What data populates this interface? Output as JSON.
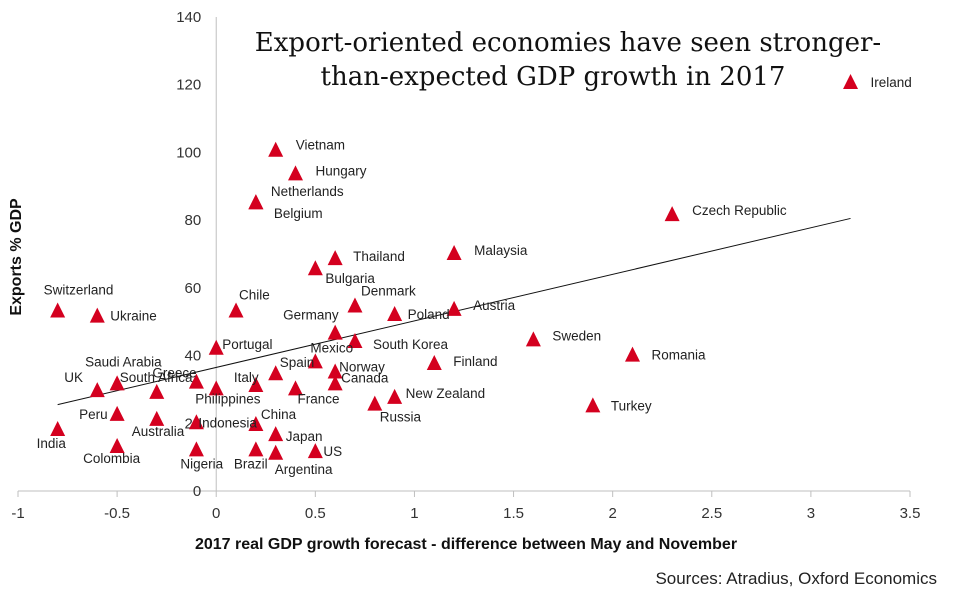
{
  "chart_data": {
    "type": "scatter",
    "title_lines": [
      "Export-oriented economies have seen stronger-",
      "than-expected GDP growth in 2017"
    ],
    "xlabel": "2017 real GDP  growth forecast - difference between May and November",
    "ylabel": "Exports % GDP",
    "source": "Sources:  Atradius,  Oxford Economics",
    "xlim": [
      -1,
      3.5
    ],
    "ylim": [
      0,
      140
    ],
    "x_ticks": [
      -1,
      -0.5,
      0,
      0.5,
      1,
      1.5,
      2,
      2.5,
      3,
      3.5
    ],
    "x_tick_labels": [
      "-1",
      "-0.5",
      "0",
      "0.5",
      "1",
      "1.5",
      "2",
      "2.5",
      "3",
      "3.5"
    ],
    "y_ticks": [
      0,
      20,
      40,
      60,
      80,
      100,
      120,
      140
    ],
    "y_tick_labels": [
      "0",
      "20",
      "40",
      "60",
      "80",
      "100",
      "120",
      "140"
    ],
    "marker_color": "#D4001F",
    "trendline": {
      "x": [
        -0.8,
        3.2
      ],
      "y": [
        25.5,
        80.5
      ]
    },
    "points": [
      {
        "label": "Ireland",
        "x": 3.2,
        "y": 120.5
      },
      {
        "label": "Vietnam",
        "x": 0.3,
        "y": 100.5
      },
      {
        "label": "Hungary",
        "x": 0.4,
        "y": 93.5
      },
      {
        "label": "Netherlands",
        "x": 0.2,
        "y": 85
      },
      {
        "label": "Belgium",
        "x": 0.2,
        "y": 85
      },
      {
        "label": "Czech Republic",
        "x": 2.3,
        "y": 81.5
      },
      {
        "label": "Thailand",
        "x": 0.6,
        "y": 68.5
      },
      {
        "label": "Malaysia",
        "x": 1.2,
        "y": 70
      },
      {
        "label": "Bulgaria",
        "x": 0.5,
        "y": 65.5
      },
      {
        "label": "Switzerland",
        "x": -0.8,
        "y": 53
      },
      {
        "label": "Ukraine",
        "x": -0.6,
        "y": 51.5
      },
      {
        "label": "Chile",
        "x": 0.1,
        "y": 53
      },
      {
        "label": "Denmark",
        "x": 0.7,
        "y": 54.5
      },
      {
        "label": "Poland",
        "x": 0.9,
        "y": 52
      },
      {
        "label": "Austria",
        "x": 1.2,
        "y": 53.5
      },
      {
        "label": "Germany",
        "x": 0.6,
        "y": 46.5
      },
      {
        "label": "South Korea",
        "x": 0.7,
        "y": 44
      },
      {
        "label": "Sweden",
        "x": 1.6,
        "y": 44.5
      },
      {
        "label": "Portugal",
        "x": 0.0,
        "y": 42
      },
      {
        "label": "Romania",
        "x": 2.1,
        "y": 40
      },
      {
        "label": "Finland",
        "x": 1.1,
        "y": 37.5
      },
      {
        "label": "Mexico",
        "x": 0.5,
        "y": 38
      },
      {
        "label": "Spain",
        "x": 0.3,
        "y": 34.5
      },
      {
        "label": "Norway",
        "x": 0.6,
        "y": 35
      },
      {
        "label": "Saudi Arabia",
        "x": -0.5,
        "y": 31.5
      },
      {
        "label": "UK",
        "x": -0.6,
        "y": 29.5
      },
      {
        "label": "Greece",
        "x": -0.1,
        "y": 32
      },
      {
        "label": "Italy",
        "x": 0.2,
        "y": 31
      },
      {
        "label": "Canada",
        "x": 0.6,
        "y": 31.5
      },
      {
        "label": "South Africa",
        "x": -0.3,
        "y": 29
      },
      {
        "label": "Philippines",
        "x": 0.0,
        "y": 30
      },
      {
        "label": "France",
        "x": 0.4,
        "y": 30
      },
      {
        "label": "New Zealand",
        "x": 0.9,
        "y": 27.5
      },
      {
        "label": "Russia",
        "x": 0.8,
        "y": 25.5
      },
      {
        "label": "Turkey",
        "x": 1.9,
        "y": 25
      },
      {
        "label": "Peru",
        "x": -0.5,
        "y": 22.5
      },
      {
        "label": "Indonesia",
        "x": -0.1,
        "y": 20
      },
      {
        "label": "China",
        "x": 0.2,
        "y": 19.5
      },
      {
        "label": "Australia",
        "x": -0.3,
        "y": 21
      },
      {
        "label": "India",
        "x": -0.8,
        "y": 18
      },
      {
        "label": "Japan",
        "x": 0.3,
        "y": 16.5
      },
      {
        "label": "Colombia",
        "x": -0.5,
        "y": 13
      },
      {
        "label": "Nigeria",
        "x": -0.1,
        "y": 12
      },
      {
        "label": "Brazil",
        "x": 0.2,
        "y": 12
      },
      {
        "label": "Argentina",
        "x": 0.3,
        "y": 11
      },
      {
        "label": "US",
        "x": 0.5,
        "y": 11.5
      }
    ]
  }
}
